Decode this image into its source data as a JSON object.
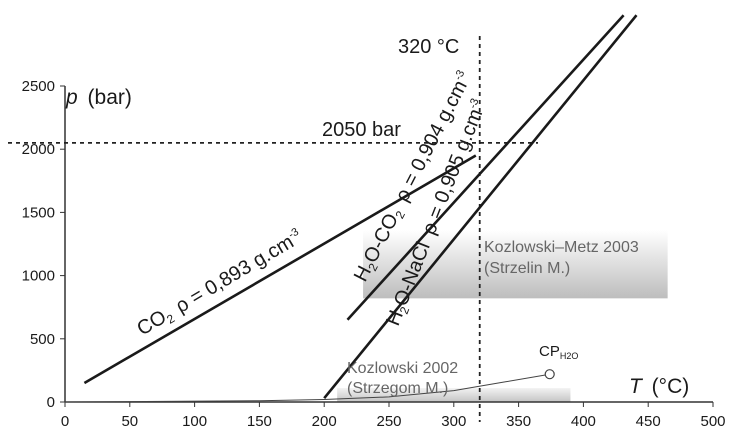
{
  "chart_data": {
    "type": "line",
    "xlabel": "T (°C)",
    "ylabel": "p (bar)",
    "xlim": [
      0,
      500
    ],
    "ylim": [
      0,
      2500
    ],
    "x_ticks": [
      "0",
      "50",
      "100",
      "150",
      "200",
      "250",
      "300",
      "350",
      "400",
      "450",
      "500"
    ],
    "y_ticks": [
      "0",
      "500",
      "1000",
      "1500",
      "2000",
      "2500"
    ],
    "series": [
      {
        "name": "CO2 ρ = 0,893 g.cm-3",
        "x": [
          15,
          317
        ],
        "y": [
          150,
          1950
        ]
      },
      {
        "name": "H2O-CO2 ρ = 0,904 g.cm-3",
        "x": [
          218,
          431
        ],
        "y": [
          650,
          3060
        ]
      },
      {
        "name": "H2O-NaCl ρ = 0,905 g.cm-3",
        "x": [
          200,
          441
        ],
        "y": [
          30,
          3060
        ]
      },
      {
        "name": "CPH2O curve",
        "x": [
          0,
          150,
          200,
          250,
          300,
          340,
          374
        ],
        "y": [
          0,
          10,
          20,
          40,
          90,
          160,
          220
        ]
      }
    ],
    "reference_lines": [
      {
        "axis": "x",
        "value": 320,
        "label": "320 °C"
      },
      {
        "axis": "y",
        "value": 2050,
        "label": "2050 bar"
      }
    ],
    "regions": [
      {
        "name": "Kozlowski–Metz 2003 (Strzelin M.)",
        "x": [
          230,
          465
        ],
        "y": [
          820,
          1360
        ]
      },
      {
        "name": "Kozlowski 2002 (Strzegom M.)",
        "x": [
          210,
          390
        ],
        "y": [
          0,
          110
        ]
      }
    ],
    "critical_point": {
      "label": "CP",
      "sub": "H2O",
      "x": 374,
      "y": 220
    },
    "labels": {
      "co2": {
        "main": "CO",
        "sub": "2",
        "rho": "ρ = 0,893 g.cm",
        "sup": "-3"
      },
      "h2oco2": {
        "h": "H",
        "sub": "2",
        "rest": "O-CO",
        "sub2": "2",
        "rho": "ρ = 0,904 g.cm",
        "sup": "-3"
      },
      "h2onacl": {
        "h": "H",
        "sub": "2",
        "rest": "O-NaCl",
        "rho": "ρ = 0,905 g.cm",
        "sup": "-3"
      },
      "kozlowski_metz": [
        "Kozlowski–Metz 2003",
        "(Strzelin M.)"
      ],
      "kozlowski_2002": [
        "Kozlowski 2002",
        "(Strzegom M.)"
      ],
      "ylabel_var": "p",
      "ylabel_unit": "(bar)",
      "xlabel_var": "T",
      "xlabel_unit": "(°C)"
    }
  }
}
